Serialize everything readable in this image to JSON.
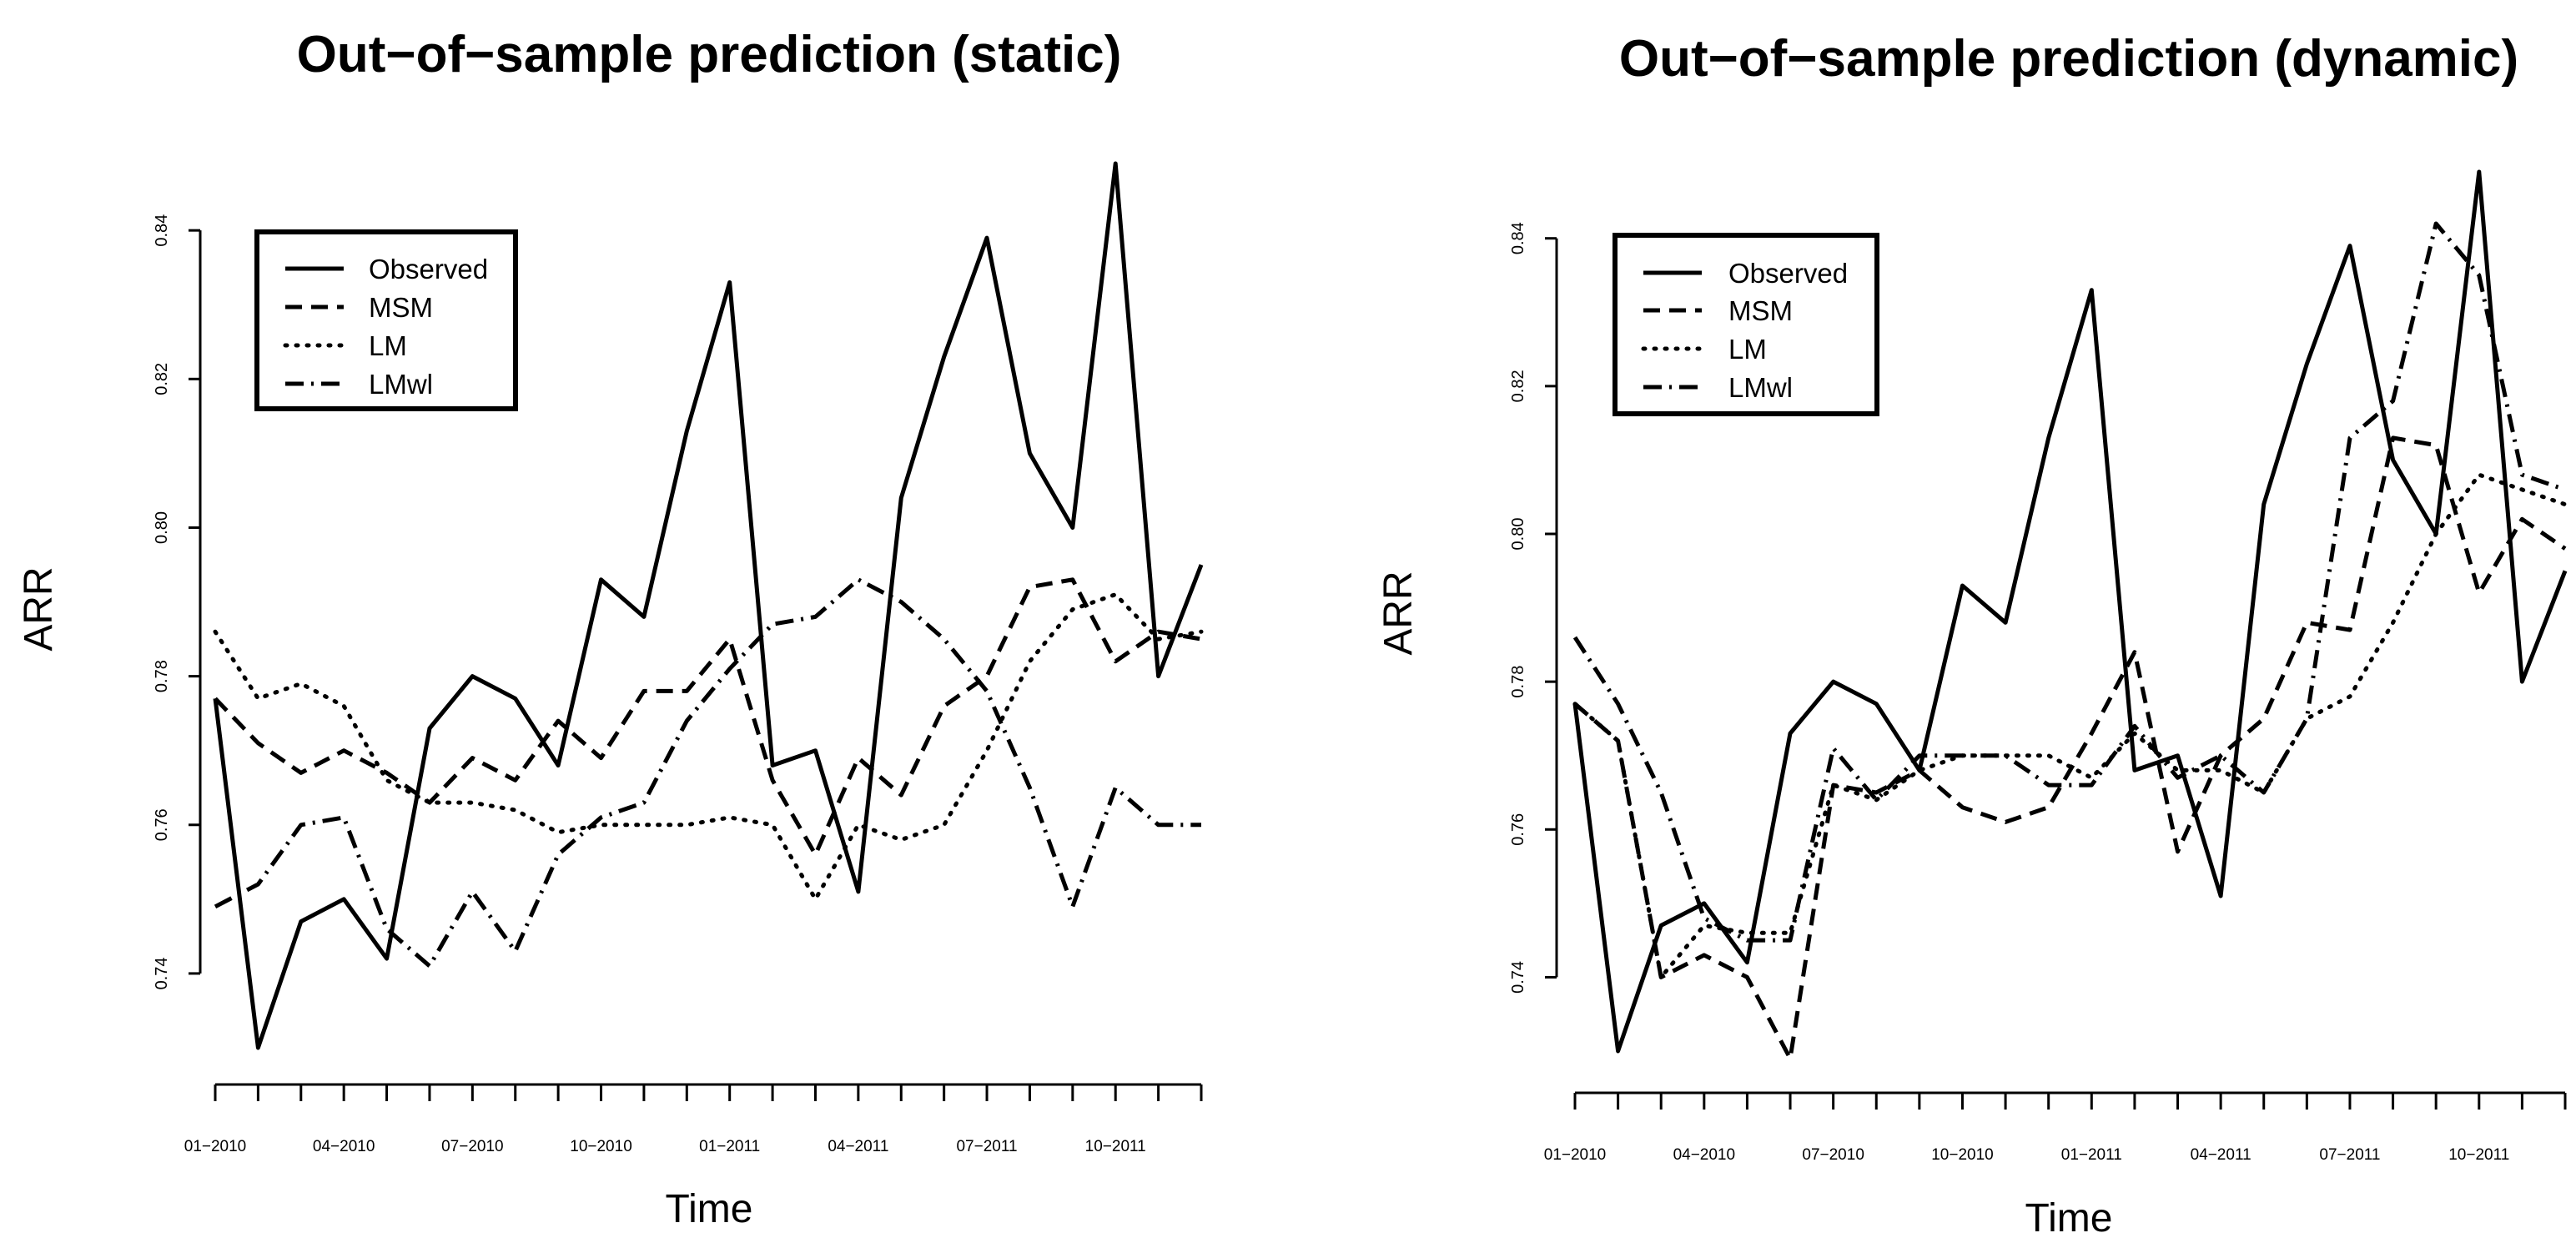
{
  "chart_data": [
    {
      "type": "line",
      "title": "Out−of−sample prediction (static)",
      "xlabel": "Time",
      "ylabel": "ARR",
      "ylim": [
        0.73,
        0.849
      ],
      "x": [
        "01-2010",
        "02-2010",
        "03-2010",
        "04-2010",
        "05-2010",
        "06-2010",
        "07-2010",
        "08-2010",
        "09-2010",
        "10-2010",
        "11-2010",
        "12-2010",
        "01-2011",
        "02-2011",
        "03-2011",
        "04-2011",
        "05-2011",
        "06-2011",
        "07-2011",
        "08-2011",
        "09-2011",
        "10-2011",
        "11-2011",
        "12-2011"
      ],
      "x_tick_labels": [
        "01−2010",
        "04−2010",
        "07−2010",
        "10−2010",
        "01−2011",
        "04−2011",
        "07−2011",
        "10−2011"
      ],
      "x_tick_label_index": [
        0,
        3,
        6,
        9,
        12,
        15,
        18,
        21
      ],
      "y_ticks": [
        0.74,
        0.76,
        0.78,
        0.8,
        0.82,
        0.84
      ],
      "y_tick_labels": [
        "0.74",
        "0.76",
        "0.78",
        "0.80",
        "0.82",
        "0.84"
      ],
      "legend": {
        "position": "top-left",
        "entries": [
          "Observed",
          "MSM",
          "LM",
          "LMwl"
        ]
      },
      "series": [
        {
          "name": "Observed",
          "values": [
            0.777,
            0.73,
            0.747,
            0.75,
            0.742,
            0.773,
            0.78,
            0.777,
            0.768,
            0.793,
            0.788,
            0.813,
            0.833,
            0.768,
            0.77,
            0.751,
            0.804,
            0.823,
            0.839,
            0.81,
            0.8,
            0.849,
            0.78,
            0.795
          ]
        },
        {
          "name": "MSM",
          "values": [
            0.777,
            0.771,
            0.767,
            0.77,
            0.767,
            0.763,
            0.769,
            0.766,
            0.774,
            0.769,
            0.778,
            0.778,
            0.785,
            0.766,
            0.756,
            0.769,
            0.764,
            0.776,
            0.78,
            0.792,
            0.793,
            0.782,
            0.786,
            0.785
          ]
        },
        {
          "name": "LM",
          "values": [
            0.786,
            0.777,
            0.779,
            0.776,
            0.766,
            0.763,
            0.763,
            0.762,
            0.759,
            0.76,
            0.76,
            0.76,
            0.761,
            0.76,
            0.75,
            0.76,
            0.758,
            0.76,
            0.77,
            0.782,
            0.789,
            0.791,
            0.785,
            0.786
          ]
        },
        {
          "name": "LMwl",
          "values": [
            0.749,
            0.752,
            0.76,
            0.761,
            0.746,
            0.741,
            0.751,
            0.743,
            0.756,
            0.761,
            0.763,
            0.774,
            0.781,
            0.787,
            0.788,
            0.793,
            0.79,
            0.785,
            0.778,
            0.765,
            0.749,
            0.765,
            0.76,
            0.76
          ]
        }
      ]
    },
    {
      "type": "line",
      "title": "Out−of−sample prediction (dynamic)",
      "xlabel": "Time",
      "ylabel": "ARR",
      "ylim": [
        0.73,
        0.849
      ],
      "x": [
        "01-2010",
        "02-2010",
        "03-2010",
        "04-2010",
        "05-2010",
        "06-2010",
        "07-2010",
        "08-2010",
        "09-2010",
        "10-2010",
        "11-2010",
        "12-2010",
        "01-2011",
        "02-2011",
        "03-2011",
        "04-2011",
        "05-2011",
        "06-2011",
        "07-2011",
        "08-2011",
        "09-2011",
        "10-2011",
        "11-2011",
        "12-2011"
      ],
      "x_tick_labels": [
        "01−2010",
        "04−2010",
        "07−2010",
        "10−2010",
        "01−2011",
        "04−2011",
        "07−2011",
        "10−2011"
      ],
      "x_tick_label_index": [
        0,
        3,
        6,
        9,
        12,
        15,
        18,
        21
      ],
      "y_ticks": [
        0.74,
        0.76,
        0.78,
        0.8,
        0.82,
        0.84
      ],
      "y_tick_labels": [
        "0.74",
        "0.76",
        "0.78",
        "0.80",
        "0.82",
        "0.84"
      ],
      "legend": {
        "position": "top-left",
        "entries": [
          "Observed",
          "MSM",
          "LM",
          "LMwl"
        ]
      },
      "series": [
        {
          "name": "Observed",
          "values": [
            0.777,
            0.73,
            0.747,
            0.75,
            0.742,
            0.773,
            0.78,
            0.777,
            0.768,
            0.793,
            0.788,
            0.813,
            0.833,
            0.768,
            0.77,
            0.751,
            0.804,
            0.823,
            0.839,
            0.81,
            0.8,
            0.849,
            0.78,
            0.795
          ]
        },
        {
          "name": "MSM",
          "values": [
            0.777,
            0.772,
            0.74,
            0.743,
            0.74,
            0.729,
            0.766,
            0.765,
            0.768,
            0.763,
            0.761,
            0.763,
            0.773,
            0.784,
            0.757,
            0.77,
            0.775,
            0.788,
            0.787,
            0.813,
            0.812,
            0.792,
            0.802,
            0.798
          ]
        },
        {
          "name": "LM",
          "values": [
            0.777,
            0.772,
            0.74,
            0.747,
            0.746,
            0.746,
            0.766,
            0.764,
            0.768,
            0.77,
            0.77,
            0.77,
            0.767,
            0.773,
            0.768,
            0.768,
            0.765,
            0.775,
            0.778,
            0.788,
            0.8,
            0.808,
            0.806,
            0.804
          ]
        },
        {
          "name": "LMwl",
          "values": [
            0.786,
            0.777,
            0.765,
            0.748,
            0.745,
            0.745,
            0.771,
            0.764,
            0.77,
            0.77,
            0.77,
            0.766,
            0.766,
            0.774,
            0.767,
            0.77,
            0.765,
            0.775,
            0.813,
            0.818,
            0.842,
            0.835,
            0.808,
            0.806
          ]
        }
      ]
    }
  ]
}
